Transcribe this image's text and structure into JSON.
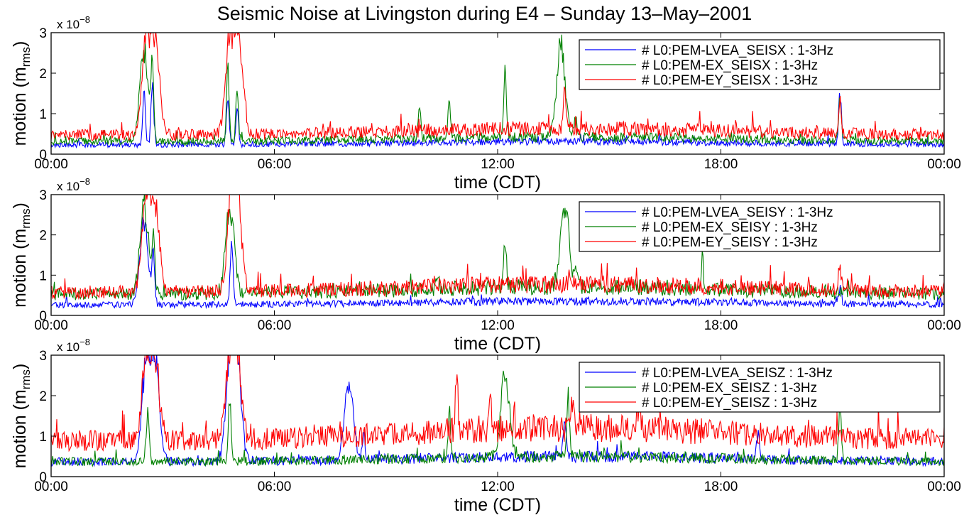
{
  "title": "Seismic Noise at Livingston during E4 – Sunday 13–May–2001",
  "chart_data": [
    {
      "type": "line",
      "xlabel": "time (CDT)",
      "ylabel": "motion (m_rms)",
      "y_multiplier": "x 10^-8",
      "ylim": [
        0,
        3
      ],
      "xlim": [
        "00:00",
        "24:00"
      ],
      "x_ticks": [
        "00:00",
        "06:00",
        "12:00",
        "18:00",
        "00:00"
      ],
      "y_ticks": [
        "0",
        "1",
        "2",
        "3"
      ],
      "legend_position": "top-right",
      "series": [
        {
          "name": "# L0:PEM-LVEA_SEISX : 1-3Hz",
          "color": "#0000ff",
          "base": 0.22,
          "peaks": [
            [
              2.5,
              1.7
            ],
            [
              2.72,
              2.0
            ],
            [
              4.75,
              1.65
            ],
            [
              5.0,
              1.2
            ],
            [
              21.2,
              1.6
            ]
          ]
        },
        {
          "name": "# L0:PEM-EX_SEISX : 1-3Hz",
          "color": "#008000",
          "base": 0.3,
          "peaks": [
            [
              2.5,
              2.9
            ],
            [
              2.72,
              2.2
            ],
            [
              4.75,
              2.3
            ],
            [
              5.0,
              1.8
            ],
            [
              9.9,
              1.1
            ],
            [
              10.7,
              1.35
            ],
            [
              12.2,
              2.25
            ],
            [
              13.7,
              2.9
            ],
            [
              14.1,
              0.95
            ],
            [
              21.2,
              1.5
            ]
          ]
        },
        {
          "name": "# L0:PEM-EY_SEISX : 1-3Hz",
          "color": "#ff0000",
          "base": 0.45,
          "peaks": [
            [
              2.55,
              3.0
            ],
            [
              2.8,
              3.0
            ],
            [
              4.8,
              3.0
            ],
            [
              5.05,
              3.0
            ],
            [
              13.8,
              1.6
            ],
            [
              21.2,
              1.5
            ]
          ]
        }
      ]
    },
    {
      "type": "line",
      "xlabel": "time (CDT)",
      "ylabel": "motion (m_rms)",
      "y_multiplier": "x 10^-8",
      "ylim": [
        0,
        3
      ],
      "xlim": [
        "00:00",
        "24:00"
      ],
      "x_ticks": [
        "00:00",
        "06:00",
        "12:00",
        "18:00",
        "00:00"
      ],
      "y_ticks": [
        "0",
        "1",
        "2",
        "3"
      ],
      "legend_position": "top-right",
      "series": [
        {
          "name": "# L0:PEM-LVEA_SEISY : 1-3Hz",
          "color": "#0000ff",
          "base": 0.25,
          "peaks": [
            [
              2.5,
              2.6
            ],
            [
              2.75,
              1.6
            ],
            [
              4.85,
              2.1
            ],
            [
              21.2,
              0.7
            ]
          ]
        },
        {
          "name": "# L0:PEM-EX_SEISY : 1-3Hz",
          "color": "#008000",
          "base": 0.5,
          "peaks": [
            [
              2.5,
              3.0
            ],
            [
              2.75,
              2.2
            ],
            [
              4.8,
              3.0
            ],
            [
              10.4,
              1.0
            ],
            [
              12.2,
              1.75
            ],
            [
              13.8,
              2.9
            ],
            [
              14.1,
              0.95
            ],
            [
              17.5,
              1.15
            ]
          ]
        },
        {
          "name": "# L0:PEM-EY_SEISY : 1-3Hz",
          "color": "#ff0000",
          "base": 0.55,
          "peaks": [
            [
              2.55,
              3.0
            ],
            [
              2.8,
              3.0
            ],
            [
              4.85,
              3.0
            ],
            [
              5.0,
              3.0
            ],
            [
              21.2,
              1.3
            ]
          ]
        }
      ]
    },
    {
      "type": "line",
      "xlabel": "time (CDT)",
      "ylabel": "motion (m_rms)",
      "y_multiplier": "x 10^-8",
      "ylim": [
        0,
        3
      ],
      "xlim": [
        "00:00",
        "24:00"
      ],
      "x_ticks": [
        "00:00",
        "06:00",
        "12:00",
        "18:00",
        "00:00"
      ],
      "y_ticks": [
        "0",
        "1",
        "2",
        "3"
      ],
      "legend_position": "top-right",
      "series": [
        {
          "name": "# L0:PEM-LVEA_SEISZ : 1-3Hz",
          "color": "#0000ff",
          "base": 0.35,
          "peaks": [
            [
              2.55,
              3.0
            ],
            [
              2.8,
              3.0
            ],
            [
              4.8,
              3.0
            ],
            [
              5.0,
              3.0
            ],
            [
              8.0,
              2.6
            ],
            [
              8.4,
              1.15
            ],
            [
              13.8,
              1.4
            ],
            [
              19.0,
              1.1
            ]
          ]
        },
        {
          "name": "# L0:PEM-EX_SEISZ : 1-3Hz",
          "color": "#008000",
          "base": 0.35,
          "peaks": [
            [
              2.6,
              1.9
            ],
            [
              4.8,
              2.0
            ],
            [
              10.7,
              1.5
            ],
            [
              12.2,
              2.7
            ],
            [
              13.9,
              1.9
            ],
            [
              21.2,
              1.85
            ]
          ]
        },
        {
          "name": "# L0:PEM-EY_SEISZ : 1-3Hz",
          "color": "#ff0000",
          "base": 0.85,
          "peaks": [
            [
              2.55,
              3.0
            ],
            [
              2.8,
              3.0
            ],
            [
              4.8,
              3.0
            ],
            [
              5.0,
              3.0
            ],
            [
              10.9,
              2.35
            ],
            [
              11.8,
              1.7
            ],
            [
              14.0,
              1.6
            ],
            [
              15.8,
              1.55
            ]
          ]
        }
      ]
    }
  ]
}
